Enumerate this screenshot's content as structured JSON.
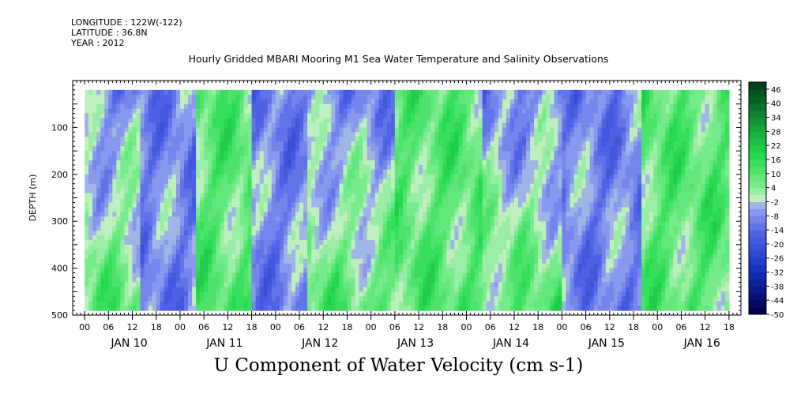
{
  "header": {
    "longitude": "LONGITUDE : 122W(-122)",
    "latitude": "LATITUDE : 36.8N",
    "year": "YEAR : 2012",
    "title": "Hourly Gridded MBARI Mooring M1 Sea Water Temperature and Salinity Observations"
  },
  "footer": {
    "variable_title": "U Component of Water Velocity (cm s-1)"
  },
  "chart_data": {
    "type": "heatmap",
    "title": "Hourly Gridded MBARI Mooring M1 Sea Water Temperature and Salinity Observations",
    "subtitle": "U Component of Water Velocity (cm s-1)",
    "ylabel": "DEPTH (m)",
    "xlabel": "",
    "ylim": [
      500,
      0
    ],
    "y_axis_inverted": true,
    "yticks": [
      100,
      200,
      300,
      400,
      500
    ],
    "xlim_hours_from_jan10_00": [
      -3,
      165
    ],
    "xtick_labels": [
      "00",
      "06",
      "12",
      "18",
      "00",
      "06",
      "12",
      "18",
      "00",
      "06",
      "12",
      "18",
      "00",
      "06",
      "12",
      "18",
      "00",
      "06",
      "12",
      "18",
      "00",
      "06",
      "12",
      "18",
      "00",
      "06",
      "12",
      "18"
    ],
    "day_labels": [
      "JAN 10",
      "JAN 11",
      "JAN 12",
      "JAN 13",
      "JAN 14",
      "JAN 15",
      "JAN 16"
    ],
    "colorbar": {
      "labels": [
        "46",
        "40",
        "34",
        "28",
        "22",
        "16",
        "10",
        "4",
        "-2",
        "-8",
        "-14",
        "-20",
        "-26",
        "-32",
        "-38",
        "-44",
        "-50"
      ],
      "levels": [
        -50,
        -47,
        -44,
        -41,
        -38,
        -35,
        -32,
        -29,
        -26,
        -23,
        -20,
        -17,
        -14,
        -11,
        -8,
        -5,
        -2,
        1,
        4,
        7,
        10,
        13,
        16,
        19,
        22,
        25,
        28,
        31,
        34,
        37,
        40,
        43,
        46,
        49
      ],
      "colors": {
        "very_negative": "#000050",
        "negative": "#2850c8",
        "slightly_negative": "#9aa8ee",
        "near_zero": "#c0f0c0",
        "positive": "#40e860",
        "very_positive": "#004018"
      }
    },
    "data_extent": {
      "time_hours": [
        0,
        162
      ],
      "depth_m": [
        20,
        485
      ]
    },
    "field_description_bands": [
      {
        "t_start": 0,
        "t_end": 14,
        "depth_surface_sign": "negative",
        "depth_deep_sign": "positive"
      },
      {
        "t_start": 14,
        "t_end": 28,
        "depth_surface_sign": "negative",
        "depth_deep_sign": "negative"
      },
      {
        "t_start": 28,
        "t_end": 42,
        "depth_surface_sign": "positive",
        "depth_deep_sign": "positive"
      },
      {
        "t_start": 42,
        "t_end": 56,
        "depth_surface_sign": "negative",
        "depth_deep_sign": "negative"
      },
      {
        "t_start": 56,
        "t_end": 78,
        "depth_surface_sign": "negative",
        "depth_deep_sign": "positive"
      },
      {
        "t_start": 78,
        "t_end": 100,
        "depth_surface_sign": "positive",
        "depth_deep_sign": "positive"
      },
      {
        "t_start": 100,
        "t_end": 120,
        "depth_surface_sign": "negative",
        "depth_deep_sign": "positive"
      },
      {
        "t_start": 120,
        "t_end": 140,
        "depth_surface_sign": "negative",
        "depth_deep_sign": "negative"
      },
      {
        "t_start": 140,
        "t_end": 162,
        "depth_surface_sign": "positive",
        "depth_deep_sign": "positive"
      }
    ]
  }
}
